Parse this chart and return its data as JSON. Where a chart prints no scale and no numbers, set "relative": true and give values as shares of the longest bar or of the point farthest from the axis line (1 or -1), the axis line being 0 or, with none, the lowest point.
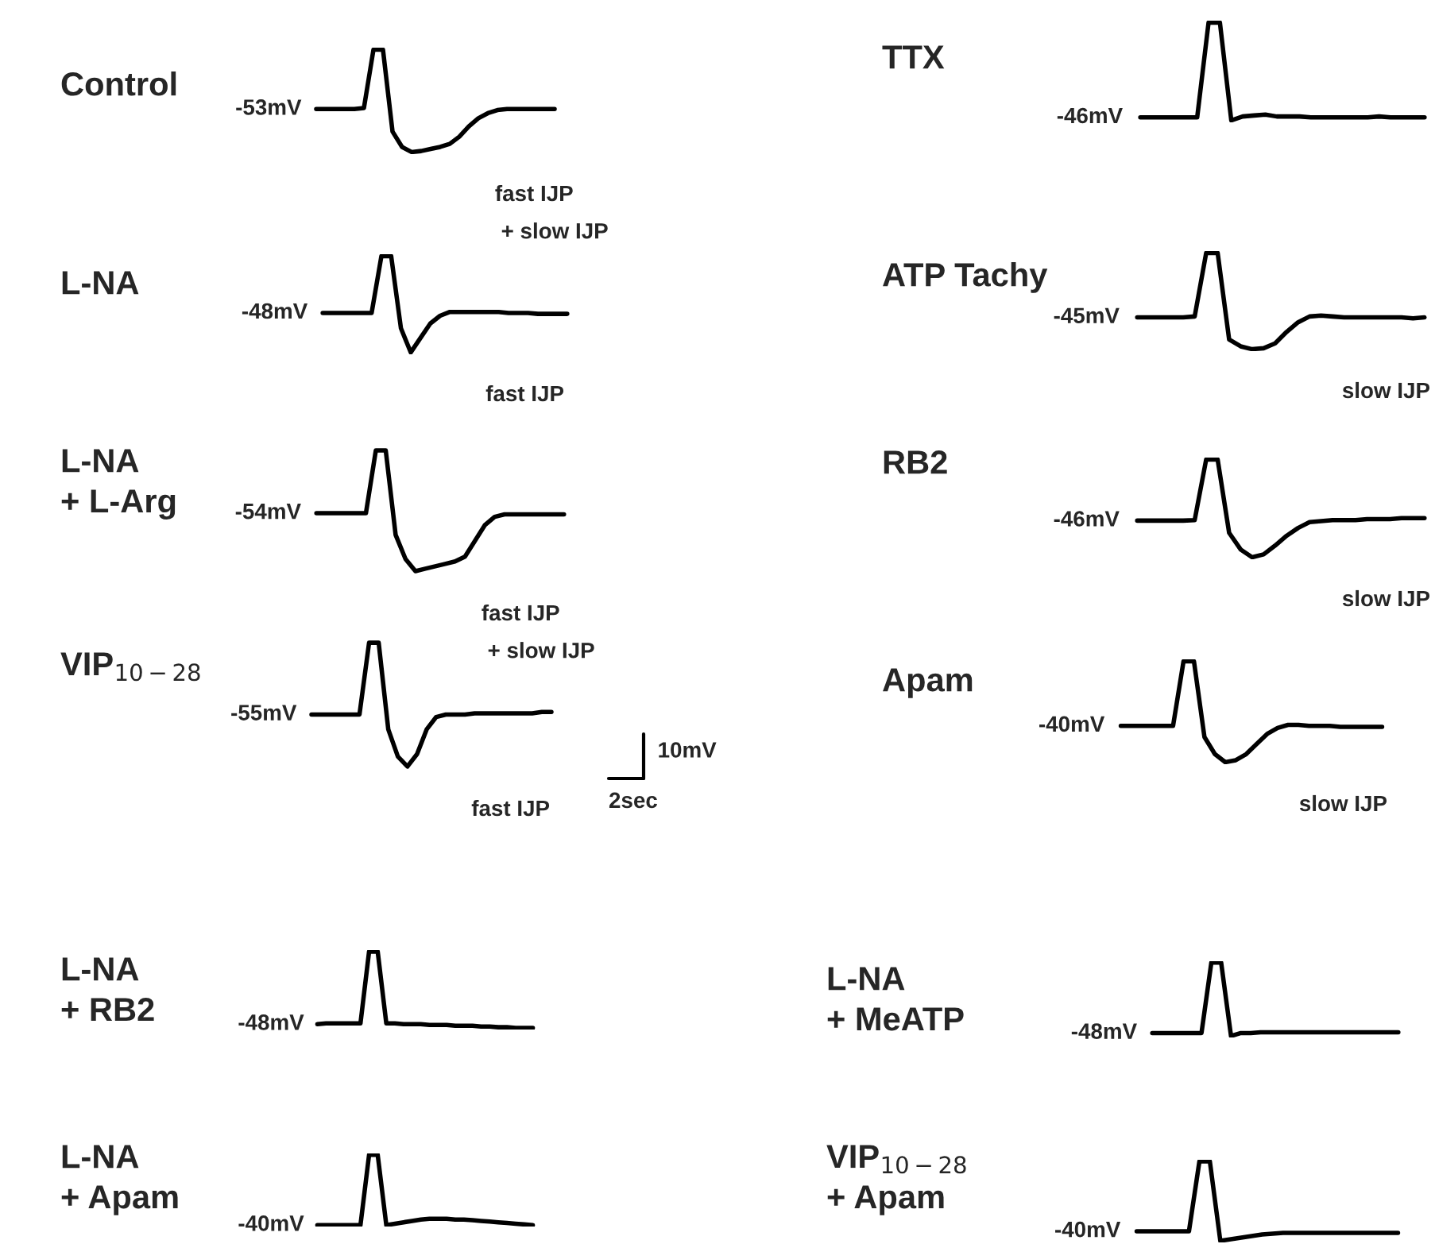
{
  "chart_data": [
    {
      "type": "line",
      "title": "Control",
      "annotations": [
        "-53mV",
        "fast IJP",
        " + slow IJP"
      ],
      "relative": true,
      "categories": [
        null,
        null,
        null,
        null,
        null,
        null,
        null,
        null,
        null,
        null,
        null,
        null,
        null,
        null,
        null,
        null,
        null,
        null,
        null,
        null,
        null,
        null,
        null,
        null,
        null,
        null
      ],
      "series": [
        {
          "color": "#000000",
          "values": [
            0.42,
            0.42,
            0.42,
            0.42,
            0.42,
            0.43,
            1,
            1,
            0.2,
            0.05,
            0.0,
            0.01,
            0.03,
            0.05,
            0.08,
            0.15,
            0.25,
            0.33,
            0.38,
            0.41,
            0.42,
            0.42,
            0.42,
            0.42,
            0.42,
            0.42
          ]
        }
      ]
    },
    {
      "type": "line",
      "title": "TTX",
      "annotations": [
        "-46mV"
      ],
      "relative": true,
      "categories": [
        null,
        null,
        null,
        null,
        null,
        null,
        null,
        null,
        null,
        null,
        null,
        null,
        null,
        null,
        null,
        null,
        null,
        null,
        null,
        null,
        null,
        null,
        null,
        null,
        null,
        null
      ],
      "series": [
        {
          "color": "#000000",
          "values": [
            0.03,
            0.03,
            0.03,
            0.03,
            0.03,
            0.03,
            1,
            1,
            0.0,
            0.04,
            0.05,
            0.06,
            0.04,
            0.04,
            0.04,
            0.03,
            0.03,
            0.03,
            0.03,
            0.03,
            0.03,
            0.04,
            0.03,
            0.03,
            0.03,
            0.03
          ]
        }
      ]
    },
    {
      "type": "line",
      "title": "L-NA",
      "annotations": [
        "-48mV",
        "fast IJP"
      ],
      "relative": true,
      "categories": [
        null,
        null,
        null,
        null,
        null,
        null,
        null,
        null,
        null,
        null,
        null,
        null,
        null,
        null,
        null,
        null,
        null,
        null,
        null,
        null,
        null,
        null,
        null,
        null,
        null,
        null
      ],
      "series": [
        {
          "color": "#000000",
          "values": [
            0.41,
            0.41,
            0.41,
            0.41,
            0.41,
            0.41,
            1,
            1,
            0.25,
            0.0,
            0.15,
            0.3,
            0.38,
            0.42,
            0.42,
            0.42,
            0.42,
            0.42,
            0.42,
            0.41,
            0.41,
            0.41,
            0.4,
            0.4,
            0.4,
            0.4
          ]
        }
      ]
    },
    {
      "type": "line",
      "title": "ATP Tachy",
      "annotations": [
        "-45mV",
        "slow IJP"
      ],
      "relative": true,
      "categories": [
        null,
        null,
        null,
        null,
        null,
        null,
        null,
        null,
        null,
        null,
        null,
        null,
        null,
        null,
        null,
        null,
        null,
        null,
        null,
        null,
        null,
        null,
        null,
        null,
        null,
        null
      ],
      "series": [
        {
          "color": "#000000",
          "values": [
            0.33,
            0.33,
            0.33,
            0.33,
            0.33,
            0.34,
            1,
            1,
            0.1,
            0.03,
            0.0,
            0.01,
            0.06,
            0.18,
            0.28,
            0.34,
            0.35,
            0.34,
            0.33,
            0.33,
            0.33,
            0.33,
            0.33,
            0.33,
            0.32,
            0.33
          ]
        }
      ]
    },
    {
      "type": "line",
      "title": "L-NA\n+ L-Arg",
      "annotations": [
        "-54mV",
        "fast IJP",
        " + slow IJP"
      ],
      "relative": true,
      "categories": [
        null,
        null,
        null,
        null,
        null,
        null,
        null,
        null,
        null,
        null,
        null,
        null,
        null,
        null,
        null,
        null,
        null,
        null,
        null,
        null,
        null,
        null,
        null,
        null,
        null,
        null
      ],
      "series": [
        {
          "color": "#000000",
          "values": [
            0.48,
            0.48,
            0.48,
            0.48,
            0.48,
            0.48,
            1,
            1,
            0.3,
            0.1,
            0.0,
            0.02,
            0.04,
            0.06,
            0.08,
            0.12,
            0.25,
            0.38,
            0.45,
            0.47,
            0.47,
            0.47,
            0.47,
            0.47,
            0.47,
            0.47
          ]
        }
      ]
    },
    {
      "type": "line",
      "title": "RB2",
      "annotations": [
        "-46mV",
        "slow IJP"
      ],
      "relative": true,
      "categories": [
        null,
        null,
        null,
        null,
        null,
        null,
        null,
        null,
        null,
        null,
        null,
        null,
        null,
        null,
        null,
        null,
        null,
        null,
        null,
        null,
        null,
        null,
        null,
        null,
        null,
        null
      ],
      "series": [
        {
          "color": "#000000",
          "values": [
            0.375,
            0.375,
            0.375,
            0.375,
            0.375,
            0.38,
            1,
            1,
            0.25,
            0.08,
            0.0,
            0.03,
            0.12,
            0.22,
            0.3,
            0.36,
            0.37,
            0.38,
            0.38,
            0.38,
            0.39,
            0.39,
            0.39,
            0.4,
            0.4,
            0.4
          ]
        }
      ]
    },
    {
      "type": "line",
      "title": "VIP$_{10−28}$",
      "annotations": [
        "-55mV",
        "fast IJP"
      ],
      "relative": true,
      "categories": [
        null,
        null,
        null,
        null,
        null,
        null,
        null,
        null,
        null,
        null,
        null,
        null,
        null,
        null,
        null,
        null,
        null,
        null,
        null,
        null,
        null,
        null,
        null,
        null,
        null,
        null
      ],
      "series": [
        {
          "color": "#000000",
          "values": [
            0.42,
            0.42,
            0.42,
            0.42,
            0.42,
            0.42,
            1,
            1,
            0.3,
            0.08,
            0.0,
            0.1,
            0.3,
            0.4,
            0.42,
            0.42,
            0.42,
            0.43,
            0.43,
            0.43,
            0.43,
            0.43,
            0.43,
            0.43,
            0.44,
            0.44
          ]
        }
      ]
    },
    {
      "type": "line",
      "title": "Apam",
      "annotations": [
        "-40mV",
        "slow IJP"
      ],
      "relative": true,
      "categories": [
        null,
        null,
        null,
        null,
        null,
        null,
        null,
        null,
        null,
        null,
        null,
        null,
        null,
        null,
        null,
        null,
        null,
        null,
        null,
        null,
        null,
        null,
        null,
        null,
        null,
        null
      ],
      "series": [
        {
          "color": "#000000",
          "values": [
            0.36,
            0.36,
            0.36,
            0.36,
            0.36,
            0.36,
            1,
            1,
            0.25,
            0.08,
            0.0,
            0.02,
            0.08,
            0.18,
            0.28,
            0.34,
            0.37,
            0.37,
            0.36,
            0.36,
            0.36,
            0.35,
            0.35,
            0.35,
            0.35,
            0.35
          ]
        }
      ]
    },
    {
      "type": "other",
      "annotations": [
        "10mV",
        "2sec"
      ]
    },
    {
      "type": "line",
      "title": "L-NA\n+ RB2",
      "annotations": [
        "-48mV"
      ],
      "relative": true,
      "categories": [
        null,
        null,
        null,
        null,
        null,
        null,
        null,
        null,
        null,
        null,
        null,
        null,
        null,
        null,
        null,
        null,
        null,
        null,
        null,
        null,
        null,
        null,
        null,
        null,
        null,
        null
      ],
      "series": [
        {
          "color": "#000000",
          "values": [
            0.05,
            0.06,
            0.06,
            0.06,
            0.06,
            0.06,
            1,
            1,
            0.06,
            0.06,
            0.05,
            0.05,
            0.05,
            0.04,
            0.04,
            0.04,
            0.03,
            0.03,
            0.03,
            0.02,
            0.02,
            0.01,
            0.01,
            0.0,
            0.0,
            0.0
          ]
        }
      ]
    },
    {
      "type": "line",
      "title": "L-NA\n+ MeATP",
      "annotations": [
        "-48mV"
      ],
      "relative": true,
      "categories": [
        null,
        null,
        null,
        null,
        null,
        null,
        null,
        null,
        null,
        null,
        null,
        null,
        null,
        null,
        null,
        null,
        null,
        null,
        null,
        null,
        null,
        null,
        null,
        null,
        null,
        null
      ],
      "series": [
        {
          "color": "#000000",
          "values": [
            0.04,
            0.04,
            0.04,
            0.04,
            0.04,
            0.04,
            1,
            1,
            0.0,
            0.04,
            0.04,
            0.05,
            0.05,
            0.05,
            0.05,
            0.05,
            0.05,
            0.05,
            0.05,
            0.05,
            0.05,
            0.05,
            0.05,
            0.05,
            0.05,
            0.05
          ]
        }
      ]
    },
    {
      "type": "line",
      "title": "L-NA\n+ Apam",
      "annotations": [
        "-40mV"
      ],
      "relative": true,
      "categories": [
        null,
        null,
        null,
        null,
        null,
        null,
        null,
        null,
        null,
        null,
        null,
        null,
        null,
        null,
        null,
        null,
        null,
        null,
        null,
        null,
        null,
        null,
        null,
        null,
        null,
        null
      ],
      "series": [
        {
          "color": "#000000",
          "values": [
            0.0,
            0.0,
            0.0,
            0.0,
            0.0,
            0.0,
            1,
            1,
            0.0,
            0.02,
            0.04,
            0.06,
            0.08,
            0.09,
            0.09,
            0.09,
            0.08,
            0.08,
            0.07,
            0.06,
            0.05,
            0.04,
            0.03,
            0.02,
            0.01,
            0.0
          ]
        }
      ]
    },
    {
      "type": "line",
      "title": "VIP$_{10−28}$\n+ Apam",
      "annotations": [
        "-40mV"
      ],
      "relative": true,
      "categories": [
        null,
        null,
        null,
        null,
        null,
        null,
        null,
        null,
        null,
        null,
        null,
        null,
        null,
        null,
        null,
        null,
        null,
        null,
        null,
        null,
        null,
        null,
        null,
        null,
        null,
        null
      ],
      "series": [
        {
          "color": "#000000",
          "values": [
            0.12,
            0.12,
            0.12,
            0.12,
            0.12,
            0.12,
            1,
            1,
            0.0,
            0.02,
            0.04,
            0.06,
            0.08,
            0.09,
            0.1,
            0.1,
            0.1,
            0.1,
            0.1,
            0.1,
            0.1,
            0.1,
            0.1,
            0.1,
            0.1,
            0.1
          ]
        }
      ]
    }
  ]
}
